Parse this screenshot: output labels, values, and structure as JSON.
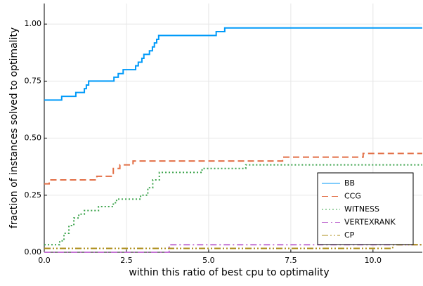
{
  "chart_data": {
    "type": "step",
    "xlabel": "within this ratio of best cpu to optimality",
    "ylabel": "fraction of instances solved to optimality",
    "xlim": [
      0,
      11.5
    ],
    "ylim": [
      0,
      1.09
    ],
    "xticks": [
      {
        "value": 0,
        "label": "0.0"
      },
      {
        "value": 2.5,
        "label": "2.5"
      },
      {
        "value": 5,
        "label": "5.0"
      },
      {
        "value": 7.5,
        "label": "7.5"
      },
      {
        "value": 10,
        "label": "10.0"
      }
    ],
    "yticks": [
      {
        "value": 0,
        "label": "0.00"
      },
      {
        "value": 0.25,
        "label": "0.25"
      },
      {
        "value": 0.5,
        "label": "0.50"
      },
      {
        "value": 0.75,
        "label": "0.75"
      },
      {
        "value": 1,
        "label": "1.00"
      }
    ],
    "grid": true,
    "legend": "lower right",
    "series": [
      {
        "name": "BB",
        "color": "#009af9",
        "dash": "solid",
        "x": [
          0,
          0.53,
          0.96,
          1.22,
          1.28,
          1.35,
          2.12,
          2.25,
          2.4,
          2.78,
          2.86,
          2.97,
          3.03,
          3.2,
          3.29,
          3.35,
          3.42,
          3.48,
          5.23,
          5.49
        ],
        "values": [
          0.667,
          0.683,
          0.7,
          0.717,
          0.733,
          0.75,
          0.767,
          0.783,
          0.8,
          0.817,
          0.833,
          0.85,
          0.867,
          0.883,
          0.9,
          0.917,
          0.933,
          0.95,
          0.967,
          0.983
        ]
      },
      {
        "name": "CCG",
        "color": "#e26f46",
        "dash": "dash",
        "x": [
          0,
          0.15,
          1.6,
          2.1,
          2.3,
          2.7,
          7.25,
          9.7
        ],
        "values": [
          0.3,
          0.317,
          0.333,
          0.367,
          0.383,
          0.4,
          0.417,
          0.433
        ]
      },
      {
        "name": "WITNESS",
        "color": "#3da44d",
        "dash": "dot",
        "x": [
          0,
          0.47,
          0.6,
          0.75,
          0.9,
          1.05,
          1.22,
          1.65,
          2.1,
          2.2,
          2.93,
          3.15,
          3.3,
          3.5,
          4.8,
          6.13
        ],
        "values": [
          0.033,
          0.05,
          0.083,
          0.117,
          0.15,
          0.167,
          0.183,
          0.2,
          0.217,
          0.233,
          0.25,
          0.283,
          0.317,
          0.35,
          0.367,
          0.383
        ]
      },
      {
        "name": "VERTEXRANK",
        "color": "#c271d2",
        "dash": "dashdot",
        "x": [
          0,
          3.8
        ],
        "values": [
          0,
          0.033
        ]
      },
      {
        "name": "CP",
        "color": "#ac8d18",
        "dash": "dashdotdot",
        "x": [
          0,
          10.6
        ],
        "values": [
          0.017,
          0.033
        ]
      }
    ]
  }
}
